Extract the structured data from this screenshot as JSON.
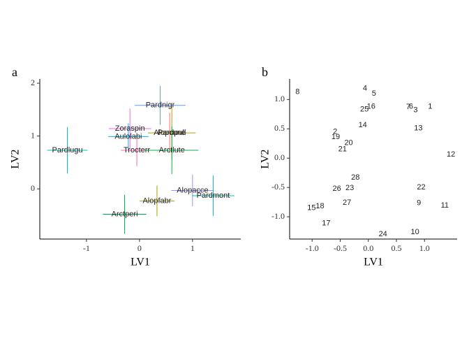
{
  "chart_data": [
    {
      "type": "errorcross",
      "panel": "a",
      "x_label": "LV1",
      "y_label": "LV2",
      "xlim": [
        -1.88,
        1.91
      ],
      "ylim": [
        -0.95,
        2.08
      ],
      "xticks": [
        -1,
        0,
        1
      ],
      "yticks": [
        0,
        1,
        2
      ],
      "labels": [
        "Pardnigr",
        "Zoraspin",
        "Aulolabi",
        "Alopcune",
        "Pardpull",
        "Trocterr",
        "Arctlute",
        "Pardlugu",
        "Alopacce",
        "Pardmont",
        "Alopfabr",
        "Arctperi"
      ],
      "x": [
        0.39,
        -0.18,
        -0.21,
        0.57,
        0.61,
        -0.05,
        0.61,
        -1.36,
        1.0,
        1.39,
        0.33,
        -0.28
      ],
      "y": [
        1.58,
        1.14,
        0.99,
        1.06,
        1.06,
        0.73,
        0.73,
        0.73,
        -0.03,
        -0.13,
        -0.23,
        -0.48
      ],
      "xerr": [
        0.48,
        0.4,
        0.38,
        0.3,
        0.45,
        0.3,
        0.5,
        0.38,
        0.4,
        0.4,
        0.33,
        0.41
      ],
      "yerr": [
        0.37,
        0.38,
        0.25,
        0.38,
        0.5,
        0.3,
        0.45,
        0.44,
        0.3,
        0.38,
        0.29,
        0.37
      ],
      "colors": [
        "#619cff",
        "#f564e3",
        "#00b0f6",
        "#f8766d",
        "#b79f00",
        "#ff64b0",
        "#00ba38",
        "#00bfc4",
        "#9590ff",
        "#00c0af",
        "#a3a500",
        "#00a84f"
      ]
    },
    {
      "type": "textscatter",
      "panel": "b",
      "x_label": "LV1",
      "y_label": "LV2",
      "xlim": [
        -1.4,
        1.58
      ],
      "ylim": [
        -1.38,
        1.35
      ],
      "xticks": [
        {
          "value": -1,
          "label": "-1.0"
        },
        -0.5,
        {
          "value": 0,
          "label": "0.0"
        },
        0.5,
        {
          "value": 1,
          "label": "1.0"
        }
      ],
      "yticks": [
        {
          "value": -1,
          "label": "-1.0"
        },
        -0.5,
        {
          "value": 0,
          "label": "0.0"
        },
        0.5,
        {
          "value": 1,
          "label": "1.0"
        }
      ],
      "labels": [
        "8",
        "4",
        "5",
        "16",
        "25",
        "7",
        "6",
        "3",
        "1",
        "14",
        "13",
        "2",
        "19",
        "20",
        "21",
        "12",
        "28",
        "26",
        "23",
        "22",
        "27",
        "9",
        "15",
        "18",
        "11",
        "17",
        "24",
        "10"
      ],
      "x": [
        -1.26,
        -0.06,
        0.1,
        0.05,
        -0.07,
        0.71,
        0.76,
        0.84,
        1.1,
        -0.1,
        0.89,
        -0.59,
        -0.58,
        -0.35,
        -0.46,
        1.47,
        -0.23,
        -0.56,
        -0.33,
        0.94,
        -0.38,
        0.9,
        -1.01,
        -0.86,
        1.36,
        -0.75,
        0.26,
        0.83
      ],
      "y": [
        1.13,
        1.19,
        1.1,
        0.88,
        0.83,
        0.87,
        0.88,
        0.82,
        0.88,
        0.56,
        0.51,
        0.45,
        0.36,
        0.26,
        0.15,
        0.06,
        -0.33,
        -0.52,
        -0.51,
        -0.5,
        -0.76,
        -0.77,
        -0.85,
        -0.82,
        -0.81,
        -1.11,
        -1.3,
        -1.26
      ]
    }
  ]
}
